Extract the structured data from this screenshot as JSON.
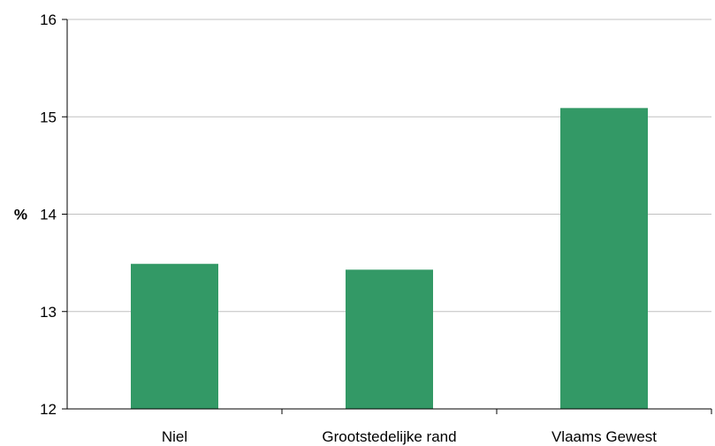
{
  "chart_data": {
    "type": "bar",
    "categories": [
      "Niel",
      "Grootstedelijke rand",
      "Vlaams Gewest"
    ],
    "values": [
      13.49,
      13.43,
      15.09
    ],
    "title": "",
    "xlabel": "",
    "ylabel": "%",
    "ylim": [
      12,
      16
    ],
    "yticks": [
      12,
      13,
      14,
      15,
      16
    ],
    "grid": true,
    "legend": "none",
    "colors": {
      "bar": "#339966",
      "grid": "#c0c0c0",
      "axis": "#000000"
    }
  }
}
